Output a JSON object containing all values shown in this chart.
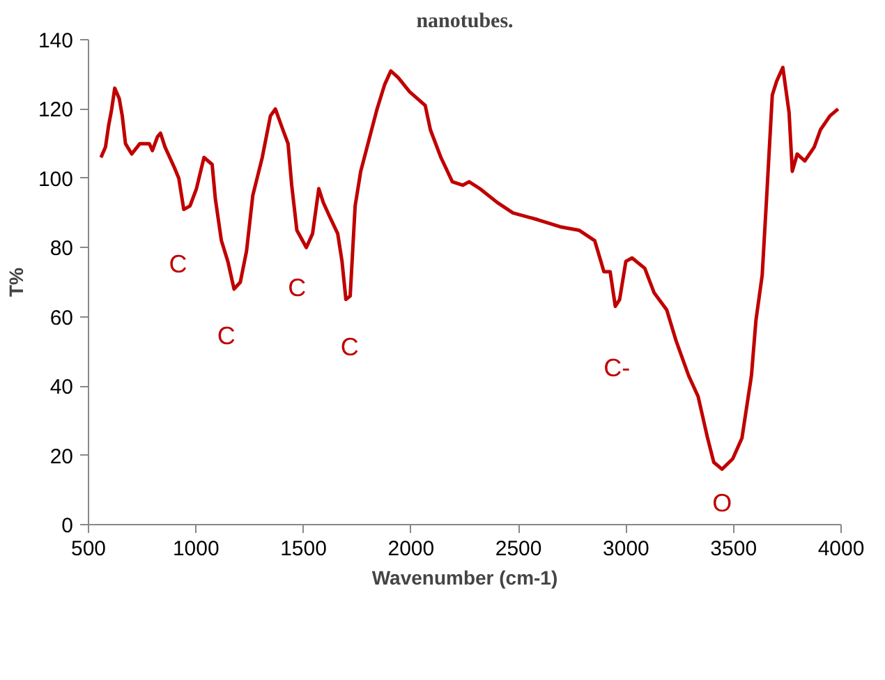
{
  "chart_data": {
    "type": "line",
    "title": "nanotubes.",
    "xlabel": "Wavenumber (cm-1)",
    "ylabel": "T%",
    "xlim": [
      500,
      4000
    ],
    "xticks": [
      500,
      1000,
      1500,
      2000,
      2500,
      3000,
      3500,
      4000
    ],
    "ylim": [
      0,
      140
    ],
    "yticks": [
      0,
      20,
      40,
      60,
      80,
      100,
      120,
      140
    ],
    "grid": false,
    "marker": "none",
    "line_style": "solid",
    "series": [
      {
        "color": "#c00000",
        "x": [
          558,
          579,
          593,
          608,
          622,
          643,
          657,
          672,
          701,
          739,
          783,
          797,
          821,
          835,
          856,
          900,
          920,
          943,
          972,
          1002,
          1037,
          1075,
          1090,
          1118,
          1148,
          1177,
          1206,
          1235,
          1264,
          1308,
          1346,
          1369,
          1404,
          1428,
          1445,
          1469,
          1513,
          1542,
          1571,
          1592,
          1621,
          1659,
          1679,
          1697,
          1717,
          1740,
          1766,
          1804,
          1842,
          1877,
          1906,
          1941,
          1993,
          2066,
          2090,
          2139,
          2192,
          2241,
          2270,
          2320,
          2401,
          2474,
          2591,
          2693,
          2781,
          2854,
          2883,
          2897,
          2926,
          2950,
          2970,
          2999,
          3028,
          3087,
          3130,
          3189,
          3233,
          3291,
          3335,
          3379,
          3408,
          3446,
          3496,
          3539,
          3583,
          3604,
          3633,
          3656,
          3680,
          3700,
          3729,
          3758,
          3773,
          3796,
          3831,
          3875,
          3904,
          3948,
          3986
        ],
        "values": [
          106,
          109,
          115,
          120,
          126,
          123,
          118,
          110,
          107,
          110,
          110,
          108,
          112,
          113,
          109,
          103,
          100,
          91,
          92,
          97,
          106,
          104,
          94,
          82,
          76,
          68,
          70,
          79,
          95,
          106,
          118,
          120,
          114,
          110,
          98,
          85,
          80,
          84,
          97,
          93,
          89,
          84,
          76,
          65,
          66,
          92,
          102,
          111,
          120,
          127,
          131,
          129,
          125,
          121,
          114,
          106,
          99,
          98,
          99,
          97,
          93,
          90,
          88,
          86,
          85,
          82,
          76,
          73,
          73,
          63,
          65,
          76,
          77,
          74,
          67,
          62,
          53,
          43,
          37,
          25,
          18,
          16,
          19,
          25,
          43,
          59,
          72,
          97,
          124,
          128,
          132,
          119,
          102,
          107,
          105,
          109,
          114,
          118,
          120
        ]
      }
    ],
    "annotations": [
      "C",
      "C",
      "C",
      "C",
      "C-",
      "O"
    ]
  }
}
